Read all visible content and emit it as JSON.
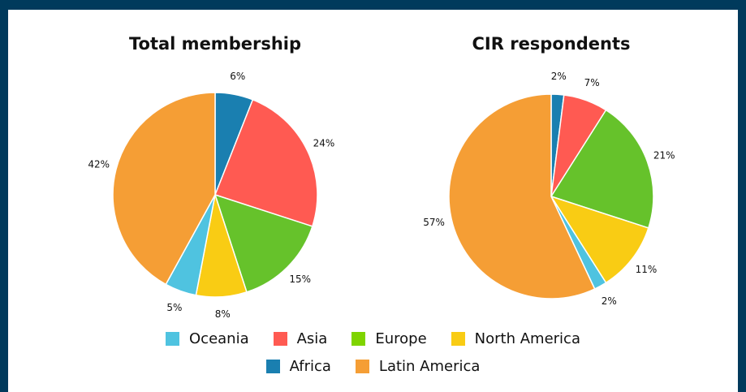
{
  "chart_data": [
    {
      "type": "pie",
      "title": "Total membership",
      "categories": [
        "Africa",
        "Asia",
        "Europe",
        "North America",
        "Oceania",
        "Latin America"
      ],
      "values": [
        6,
        24,
        15,
        8,
        5,
        42
      ],
      "value_labels": [
        "6%",
        "24%",
        "15%",
        "8%",
        "5%",
        "42%"
      ],
      "colors": [
        "#1a7fb0",
        "#ff5a52",
        "#66c22b",
        "#f9cc14",
        "#4fc3e0",
        "#f59e35"
      ]
    },
    {
      "type": "pie",
      "title": "CIR respondents",
      "categories": [
        "Africa",
        "Asia",
        "Europe",
        "North America",
        "Oceania",
        "Latin America"
      ],
      "values": [
        2,
        7,
        21,
        11,
        2,
        57
      ],
      "value_labels": [
        "2%",
        "7%",
        "21%",
        "11%",
        "2%",
        "57%"
      ],
      "colors": [
        "#1a7fb0",
        "#ff5a52",
        "#66c22b",
        "#f9cc14",
        "#4fc3e0",
        "#f59e35"
      ]
    }
  ],
  "legend": [
    {
      "name": "Oceania",
      "color": "#4fc3e0"
    },
    {
      "name": "Asia",
      "color": "#ff5a52"
    },
    {
      "name": "Europe",
      "color": "#7fd400"
    },
    {
      "name": "North America",
      "color": "#f9cc14"
    },
    {
      "name": "Africa",
      "color": "#1a7fb0"
    },
    {
      "name": "Latin America",
      "color": "#f59e35"
    }
  ]
}
